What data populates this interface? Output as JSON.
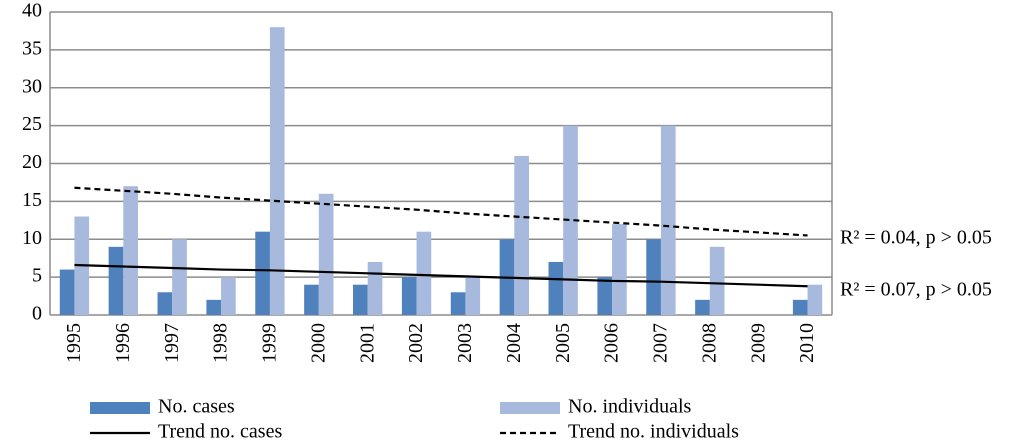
{
  "chart_data": {
    "type": "bar",
    "categories": [
      "1995",
      "1996",
      "1997",
      "1998",
      "1999",
      "2000",
      "2001",
      "2002",
      "2003",
      "2004",
      "2005",
      "2006",
      "2007",
      "2008",
      "2009",
      "2010"
    ],
    "series": [
      {
        "name": "No. cases",
        "type": "bar",
        "color": "#4f81bd",
        "values": [
          6,
          9,
          3,
          2,
          11,
          4,
          4,
          5,
          3,
          10,
          7,
          5,
          10,
          2,
          0,
          2
        ]
      },
      {
        "name": "No. individuals",
        "type": "bar",
        "color": "#a7b9dc",
        "values": [
          13,
          17,
          10,
          5,
          38,
          16,
          7,
          11,
          5,
          21,
          25,
          12,
          25,
          9,
          0,
          4
        ]
      },
      {
        "name": "Trend no. cases",
        "type": "line",
        "color": "#000000",
        "dash": "solid",
        "values": [
          6.6,
          6.4,
          6.2,
          6.0,
          5.9,
          5.7,
          5.5,
          5.3,
          5.1,
          4.9,
          4.7,
          4.5,
          4.4,
          4.2,
          4.0,
          3.8
        ]
      },
      {
        "name": "Trend no. individuals",
        "type": "line",
        "color": "#000000",
        "dash": "dashed",
        "values": [
          16.8,
          16.4,
          16.0,
          15.5,
          15.1,
          14.7,
          14.3,
          13.9,
          13.4,
          13.0,
          12.6,
          12.2,
          11.8,
          11.3,
          10.9,
          10.5
        ]
      }
    ],
    "annotations": [
      "R² = 0.04, p > 0.05",
      "R² = 0.07, p > 0.05"
    ],
    "ylim": [
      0,
      40
    ],
    "yticks": [
      0,
      5,
      10,
      15,
      20,
      25,
      30,
      35,
      40
    ],
    "grid": true,
    "legend": "bottom"
  }
}
